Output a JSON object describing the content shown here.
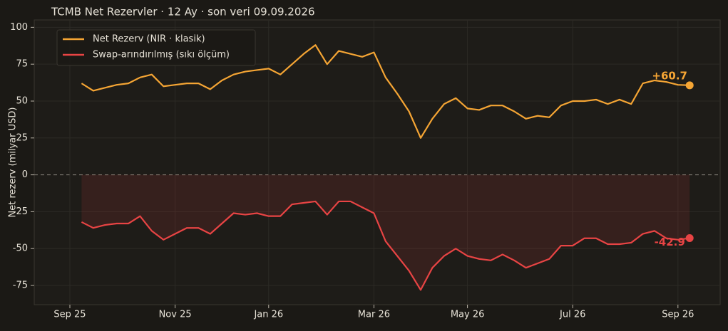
{
  "chart_data": {
    "type": "line",
    "title": "TCMB Net Rezervler · 12 Ay · son veri 09.09.2026",
    "y_label": "Net rezerv (milyar USD)",
    "categories": [
      "Sep 25",
      null,
      null,
      null,
      null,
      null,
      null,
      null,
      null,
      "Nov 25",
      null,
      null,
      null,
      null,
      null,
      null,
      null,
      "Jan 26",
      null,
      null,
      null,
      null,
      null,
      null,
      null,
      null,
      "Mar 26",
      null,
      null,
      null,
      null,
      null,
      null,
      null,
      "May 26",
      null,
      null,
      null,
      null,
      null,
      null,
      null,
      null,
      "Jul 26",
      null,
      null,
      null,
      null,
      null,
      null,
      null,
      null,
      "Sep 26",
      null
    ],
    "series": [
      {
        "name": "Net Rezerv (NIR · klasik)",
        "color": "#f5a534",
        "values": [
          null,
          62,
          57,
          59,
          61,
          62,
          66,
          68,
          60,
          61,
          62,
          62,
          58,
          64,
          68,
          70,
          71,
          72,
          68,
          75,
          82,
          88,
          75,
          84,
          82,
          80,
          83,
          66,
          55,
          43,
          25,
          38,
          48,
          52,
          45,
          44,
          47,
          47,
          43,
          38,
          40,
          39,
          47,
          50,
          50,
          51,
          48,
          51,
          48,
          62,
          64,
          63,
          61,
          60.7
        ],
        "value_labels": [
          null,
          null,
          null,
          null,
          null,
          null,
          null,
          null,
          null,
          null,
          null,
          null,
          null,
          null,
          null,
          null,
          null,
          null,
          null,
          null,
          null,
          null,
          null,
          null,
          null,
          null,
          null,
          null,
          null,
          null,
          null,
          null,
          null,
          null,
          null,
          null,
          null,
          null,
          null,
          null,
          null,
          null,
          null,
          null,
          null,
          null,
          null,
          null,
          null,
          null,
          null,
          null,
          null,
          "+60.7"
        ]
      },
      {
        "name": "Swap-arındırılmış (sıkı ölçüm)",
        "color": "#e84444",
        "values": [
          null,
          -32,
          -36,
          -34,
          -33,
          -33,
          -28,
          -38,
          -44,
          -40,
          -36,
          -36,
          -40,
          -33,
          -26,
          -27,
          -26,
          -28,
          -28,
          -20,
          -19,
          -18,
          -27,
          -18,
          -18,
          -22,
          -26,
          -45,
          -55,
          -65,
          -78,
          -63,
          -55,
          -50,
          -55,
          -57,
          -58,
          -54,
          -58,
          -63,
          -60,
          -57,
          -48,
          -48,
          -43,
          -43,
          -47,
          -47,
          -46,
          -40,
          -38,
          -43,
          -44,
          -42.9
        ],
        "value_labels": [
          null,
          null,
          null,
          null,
          null,
          null,
          null,
          null,
          null,
          null,
          null,
          null,
          null,
          null,
          null,
          null,
          null,
          null,
          null,
          null,
          null,
          null,
          null,
          null,
          null,
          null,
          null,
          null,
          null,
          null,
          null,
          null,
          null,
          null,
          null,
          null,
          null,
          null,
          null,
          null,
          null,
          null,
          null,
          null,
          null,
          null,
          null,
          null,
          null,
          null,
          null,
          null,
          null,
          "-42.9"
        ]
      }
    ],
    "ylim": [
      -88,
      105
    ],
    "yticks": [
      -75,
      -50,
      -25,
      0,
      25,
      50,
      75,
      100
    ],
    "grid": true,
    "legend": "upper left"
  }
}
